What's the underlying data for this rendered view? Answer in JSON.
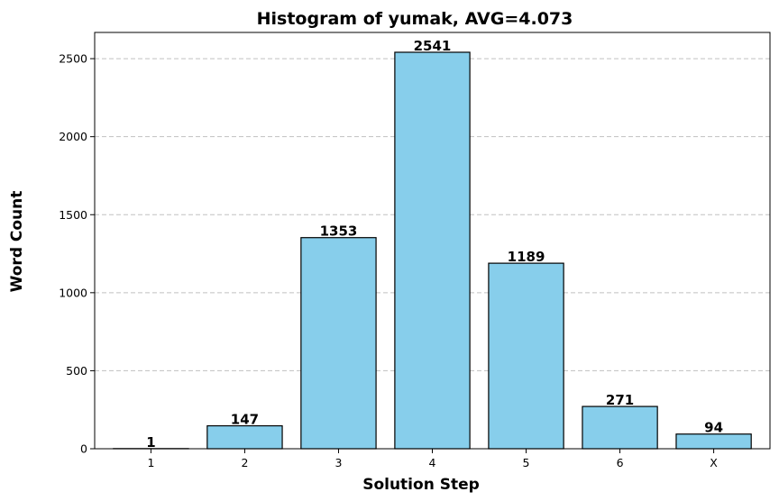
{
  "chart_data": {
    "type": "bar",
    "title": "Histogram of yumak, AVG=4.073",
    "xlabel": "Solution Step",
    "ylabel": "Word Count",
    "categories": [
      "1",
      "2",
      "3",
      "4",
      "5",
      "6",
      "X"
    ],
    "values": [
      1,
      147,
      1353,
      2541,
      1189,
      271,
      94
    ],
    "data_labels": [
      "1",
      "147",
      "1353",
      "2541",
      "1189",
      "271",
      "94"
    ],
    "ylim": [
      0,
      2668
    ],
    "yticks": [
      0,
      500,
      1000,
      1500,
      2000,
      2500
    ],
    "ytick_labels": [
      "0",
      "500",
      "1000",
      "1500",
      "2000",
      "2500"
    ],
    "grid": "y-dashed",
    "colors": {
      "bar_fill": "#87ceeb",
      "bar_edge": "#000000",
      "grid": "#c0c0c0"
    }
  }
}
